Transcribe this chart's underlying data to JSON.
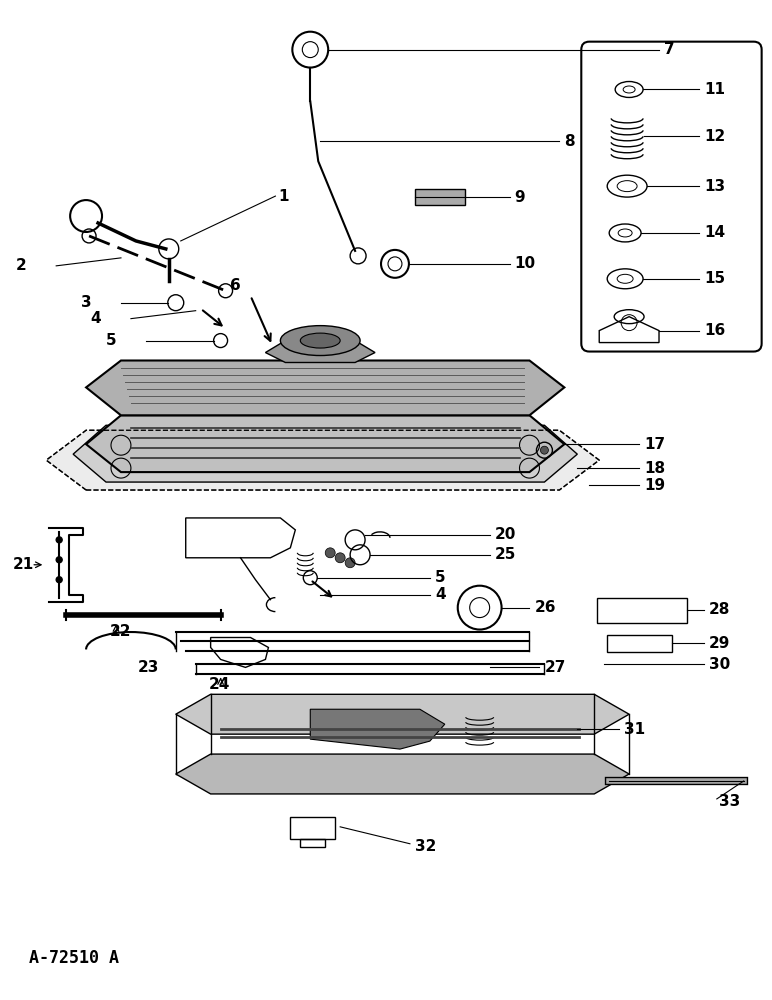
{
  "bg_color": "#ffffff",
  "fig_width": 7.72,
  "fig_height": 10.0,
  "dpi": 100,
  "watermark": "A-72510 A"
}
